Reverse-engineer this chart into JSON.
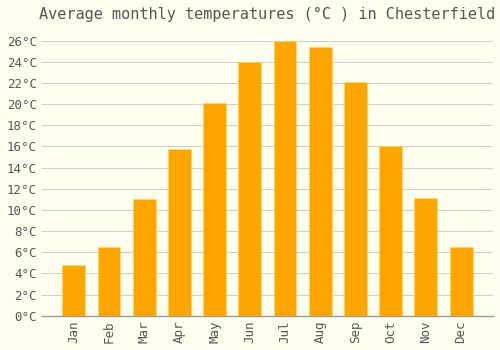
{
  "title": "Average monthly temperatures (°C ) in Chesterfield",
  "months": [
    "Jan",
    "Feb",
    "Mar",
    "Apr",
    "May",
    "Jun",
    "Jul",
    "Aug",
    "Sep",
    "Oct",
    "Nov",
    "Dec"
  ],
  "values": [
    4.8,
    6.5,
    11.0,
    15.8,
    20.1,
    24.0,
    26.0,
    25.4,
    22.1,
    16.0,
    11.1,
    6.5
  ],
  "bar_color_light": "#FFD966",
  "bar_color_dark": "#FFA500",
  "background_color": "#FFFFF0",
  "grid_color": "#CCCCCC",
  "ylim": [
    0,
    27
  ],
  "ytick_step": 2,
  "title_fontsize": 11,
  "tick_fontsize": 9,
  "font_color": "#555555"
}
